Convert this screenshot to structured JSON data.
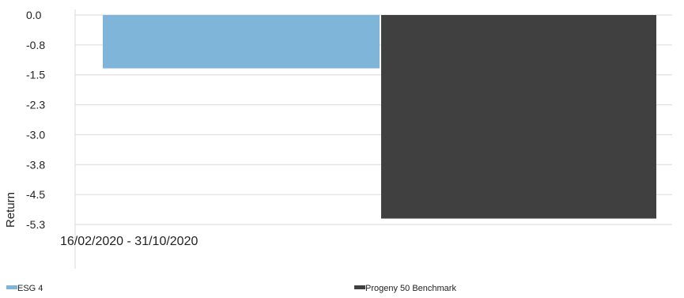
{
  "chart_data": {
    "type": "bar",
    "categories": [
      "16/02/2020 - 31/10/2020"
    ],
    "series": [
      {
        "name": "ESG 4",
        "values": [
          -1.35
        ],
        "color": "#7fb5d9"
      },
      {
        "name": "Progeny 50 Benchmark",
        "values": [
          -5.15
        ],
        "color": "#404040"
      }
    ],
    "ylabel": "Return",
    "xlabel": "",
    "ylim": [
      -5.3,
      0.0
    ],
    "yticks": [
      "0.0",
      "-0.8",
      "-1.5",
      "-2.3",
      "-3.0",
      "-3.8",
      "-4.5",
      "-5.3"
    ],
    "grid": true,
    "legend_position": "bottom"
  }
}
